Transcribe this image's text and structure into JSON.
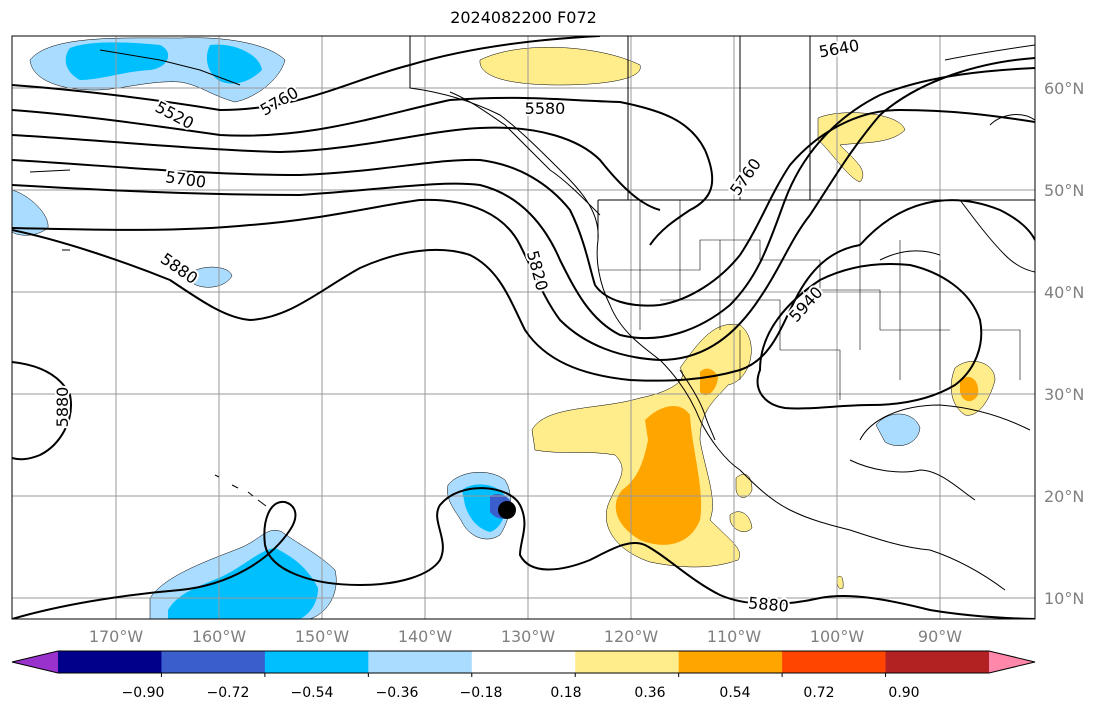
{
  "title": "2024082200 F072",
  "map": {
    "lon_labels": [
      "170°W",
      "160°W",
      "150°W",
      "140°W",
      "130°W",
      "120°W",
      "110°W",
      "100°W",
      "90°W"
    ],
    "lat_labels": [
      "60°N",
      "50°N",
      "40°N",
      "30°N",
      "20°N",
      "10°N"
    ],
    "contour_labels": [
      "5520",
      "5580",
      "5640",
      "5700",
      "5760",
      "5820",
      "5880",
      "5880",
      "5880",
      "5940"
    ],
    "storm_marker": "tropical-cyclone-center"
  },
  "colorbar": {
    "ticks": [
      "−0.90",
      "−0.72",
      "−0.54",
      "−0.36",
      "−0.18",
      "0.18",
      "0.36",
      "0.54",
      "0.72",
      "0.90"
    ],
    "colors": [
      "#9932cc",
      "#00008b",
      "#3a5fcd",
      "#00bfff",
      "#aadcff",
      "#ffffff",
      "#ffec8b",
      "#ffa500",
      "#ff4500",
      "#b22222",
      "#ff88aa"
    ]
  }
}
